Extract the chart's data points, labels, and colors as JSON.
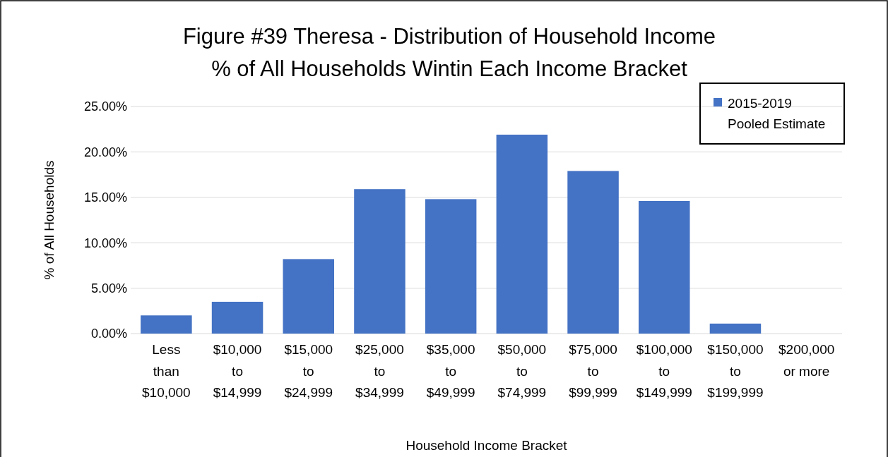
{
  "chart_data": {
    "type": "bar",
    "title": "Figure #39  Theresa - Distribution of Household Income",
    "subtitle": "% of All Households Wintin Each Income Bracket",
    "xlabel": "Household Income Bracket",
    "ylabel": "% of All Households",
    "categories": [
      "Less than $10,000",
      "$10,000 to $14,999",
      "$15,000 to $24,999",
      "$25,000 to $34,999",
      "$35,000 to $49,999",
      "$50,000 to $74,999",
      "$75,000 to $99,999",
      "$100,000 to $149,999",
      "$150,000 to $199,999",
      "$200,000 or more"
    ],
    "series": [
      {
        "name": "2015-2019 Pooled Estimate",
        "color": "#4472c4",
        "values": [
          2.0,
          3.5,
          8.2,
          15.9,
          14.8,
          21.9,
          17.9,
          14.6,
          1.1,
          0
        ]
      }
    ],
    "ylim": [
      0,
      25
    ],
    "yticks": [
      {
        "value": 0,
        "label": "0.00%"
      },
      {
        "value": 5,
        "label": "5.00%"
      },
      {
        "value": 10,
        "label": "10.00%"
      },
      {
        "value": 15,
        "label": "15.00%"
      },
      {
        "value": 20,
        "label": "20.00%"
      },
      {
        "value": 25,
        "label": "25.00%"
      }
    ],
    "grid": "y",
    "legend": "top right"
  }
}
